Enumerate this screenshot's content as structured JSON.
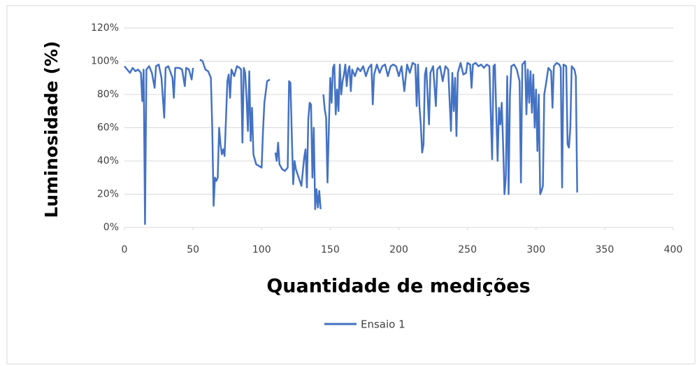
{
  "chart_data": {
    "type": "line",
    "x_axis_label": "Quantidade de medições",
    "y_axis_label": "Luminosidade (%)",
    "xlim": [
      0,
      400
    ],
    "xticks": [
      0,
      50,
      100,
      150,
      200,
      250,
      300,
      350,
      400
    ],
    "ylim": [
      0,
      120
    ],
    "yticks": [
      {
        "value": 0,
        "label": "0%"
      },
      {
        "value": 20,
        "label": "20%"
      },
      {
        "value": 40,
        "label": "40%"
      },
      {
        "value": 60,
        "label": "60%"
      },
      {
        "value": 80,
        "label": "80%"
      },
      {
        "value": 100,
        "label": "100%"
      },
      {
        "value": 120,
        "label": "120%"
      }
    ],
    "grid": true,
    "legend": "bottom",
    "x": [
      0,
      2,
      4,
      6,
      8,
      10,
      12,
      13,
      14,
      15,
      16,
      18,
      20,
      22,
      23,
      25,
      27,
      29,
      30,
      32,
      35,
      36,
      37,
      40,
      42,
      44,
      45,
      47,
      49,
      50,
      52,
      55,
      57,
      59,
      61,
      63,
      64,
      65,
      66,
      67,
      68,
      69,
      70,
      71,
      72,
      73,
      74,
      75,
      76,
      77,
      78,
      80,
      82,
      84,
      85,
      86,
      87,
      88,
      89,
      90,
      91,
      92,
      93,
      94,
      96,
      98,
      100,
      101,
      102,
      104,
      106,
      108,
      110,
      111,
      112,
      113,
      115,
      117,
      119,
      120,
      121,
      122,
      123,
      124,
      125,
      127,
      129,
      131,
      132,
      133,
      134,
      135,
      136,
      137,
      138,
      139,
      140,
      141,
      142,
      143,
      144,
      145,
      146,
      147,
      148,
      149,
      150,
      151,
      152,
      153,
      154,
      155,
      156,
      157,
      158,
      159,
      160,
      161,
      162,
      163,
      164,
      165,
      166,
      168,
      170,
      172,
      174,
      176,
      178,
      180,
      181,
      182,
      184,
      186,
      188,
      190,
      192,
      194,
      196,
      198,
      200,
      202,
      204,
      206,
      208,
      210,
      212,
      213,
      214,
      215,
      216,
      217,
      218,
      219,
      220,
      222,
      223,
      225,
      227,
      228,
      230,
      232,
      234,
      236,
      238,
      239,
      240,
      241,
      242,
      243,
      245,
      247,
      249,
      250,
      252,
      253,
      254,
      256,
      258,
      260,
      262,
      264,
      266,
      268,
      269,
      270,
      272,
      273,
      274,
      275,
      276,
      277,
      278,
      279,
      280,
      281,
      282,
      284,
      286,
      288,
      289,
      290,
      292,
      293,
      294,
      295,
      296,
      297,
      298,
      299,
      300,
      301,
      302,
      303,
      304,
      305,
      306,
      307,
      309,
      311,
      312,
      313,
      315,
      317,
      318,
      319,
      320,
      322,
      323,
      324,
      325,
      326,
      328,
      329,
      330
    ],
    "series": [
      {
        "name": "Ensaio 1",
        "color": "#4472c4",
        "values": [
          97,
          95,
          93,
          96,
          94,
          95,
          93,
          76,
          95,
          2,
          95,
          97,
          93,
          84,
          97,
          98,
          90,
          66,
          96,
          97,
          90,
          78,
          96,
          96,
          95,
          85,
          96,
          95,
          89,
          96,
          null,
          101,
          100,
          95,
          94,
          90,
          60,
          13,
          30,
          28,
          30,
          60,
          50,
          44,
          47,
          43,
          65,
          88,
          92,
          78,
          95,
          91,
          97,
          96,
          95,
          51,
          96,
          93,
          78,
          58,
          94,
          52,
          72,
          44,
          38,
          37,
          36,
          58,
          75,
          88,
          89,
          null,
          45,
          40,
          51,
          38,
          35,
          34,
          36,
          88,
          87,
          55,
          26,
          40,
          35,
          30,
          25,
          42,
          47,
          24,
          65,
          75,
          74,
          30,
          60,
          11,
          23,
          12,
          22,
          11,
          null,
          80,
          71,
          66,
          27,
          60,
          90,
          75,
          96,
          98,
          68,
          83,
          70,
          98,
          80,
          88,
          92,
          98,
          85,
          94,
          97,
          82,
          95,
          91,
          96,
          94,
          97,
          91,
          96,
          98,
          74,
          92,
          98,
          93,
          97,
          98,
          91,
          97,
          98,
          97,
          91,
          97,
          82,
          98,
          93,
          99,
          98,
          73,
          98,
          73,
          62,
          45,
          50,
          92,
          96,
          62,
          93,
          97,
          73,
          95,
          97,
          88,
          97,
          95,
          58,
          93,
          70,
          90,
          55,
          93,
          99,
          92,
          93,
          99,
          98,
          84,
          98,
          99,
          97,
          98,
          96,
          98,
          97,
          41,
          97,
          98,
          40,
          72,
          62,
          75,
          50,
          20,
          30,
          91,
          20,
          80,
          97,
          98,
          95,
          88,
          27,
          98,
          100,
          68,
          95,
          75,
          94,
          69,
          92,
          60,
          83,
          46,
          80,
          20,
          22,
          25,
          80,
          85,
          96,
          94,
          72,
          97,
          99,
          98,
          96,
          24,
          98,
          97,
          50,
          48,
          60,
          97,
          95,
          91,
          21
        ]
      }
    ]
  }
}
